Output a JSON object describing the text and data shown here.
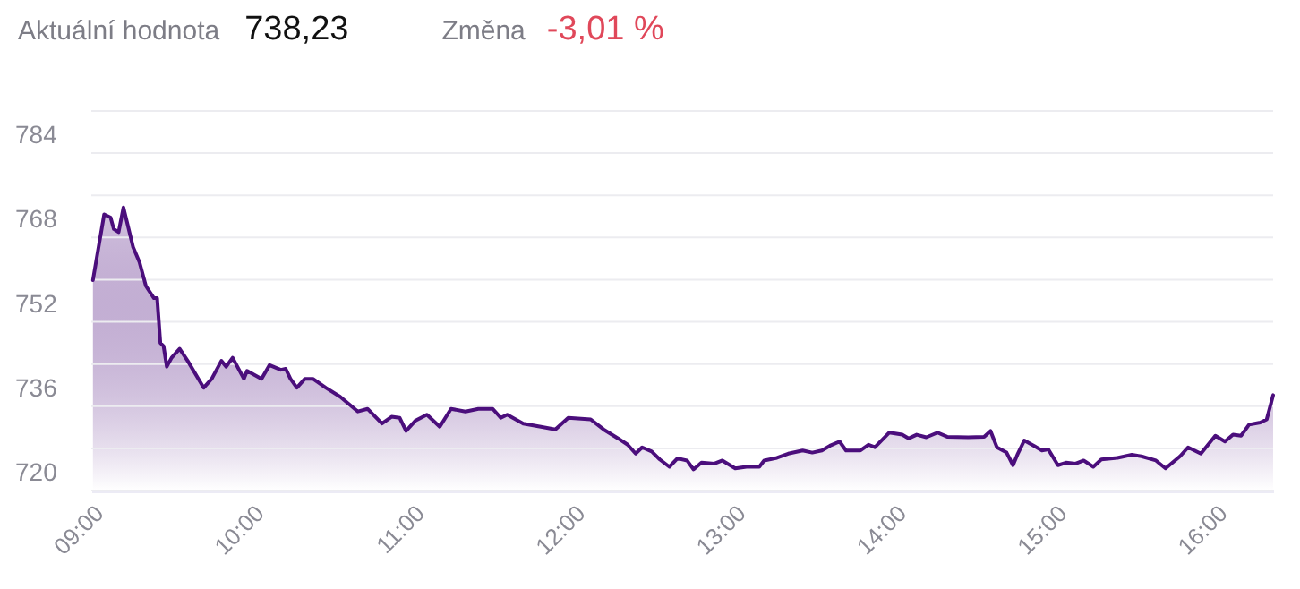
{
  "chart_data": {
    "type": "area",
    "annotations": [
      "Aktuální hodnota",
      "738,23",
      "Změna",
      "-3,01 %"
    ],
    "x": [
      9.01,
      9.08,
      9.12,
      9.14,
      9.17,
      9.2,
      9.26,
      9.3,
      9.34,
      9.39,
      9.41,
      9.43,
      9.45,
      9.47,
      9.5,
      9.55,
      9.6,
      9.7,
      9.75,
      9.81,
      9.84,
      9.88,
      9.95,
      9.97,
      10.06,
      10.11,
      10.18,
      10.21,
      10.24,
      10.28,
      10.33,
      10.38,
      10.46,
      10.55,
      10.66,
      10.72,
      10.81,
      10.87,
      10.92,
      10.96,
      11.02,
      11.09,
      11.17,
      11.24,
      11.33,
      11.41,
      11.5,
      11.55,
      11.59,
      11.69,
      11.8,
      11.89,
      11.97,
      12.11,
      12.19,
      12.28,
      12.34,
      12.39,
      12.43,
      12.49,
      12.54,
      12.6,
      12.65,
      12.71,
      12.75,
      12.8,
      12.88,
      12.93,
      13.01,
      13.08,
      13.16,
      13.19,
      13.27,
      13.34,
      13.43,
      13.49,
      13.55,
      13.6,
      13.66,
      13.7,
      13.79,
      13.84,
      13.88,
      13.97,
      14.05,
      14.09,
      14.14,
      14.2,
      14.27,
      14.33,
      14.46,
      14.56,
      14.6,
      14.64,
      14.7,
      14.74,
      14.77,
      14.81,
      14.87,
      14.92,
      14.96,
      15.02,
      15.07,
      15.13,
      15.18,
      15.24,
      15.29,
      15.39,
      15.48,
      15.54,
      15.63,
      15.69,
      15.78,
      15.83,
      15.91,
      16.0,
      16.06,
      16.11,
      16.16,
      16.21,
      16.28,
      16.32,
      16.36
    ],
    "series": [
      {
        "color": "#4b0e7c",
        "values": [
          759.9,
          772.4,
          771.8,
          769.6,
          769.0,
          773.7,
          766.2,
          763.3,
          758.8,
          756.5,
          756.5,
          748.0,
          747.4,
          743.5,
          745.2,
          746.9,
          744.6,
          739.5,
          741.2,
          744.6,
          743.5,
          745.2,
          741.2,
          742.7,
          741.2,
          743.8,
          742.9,
          743.1,
          741.2,
          739.5,
          741.2,
          741.2,
          739.5,
          737.8,
          735.0,
          735.5,
          732.7,
          734.0,
          733.8,
          731.3,
          733.3,
          734.4,
          732.1,
          735.5,
          735.0,
          735.5,
          735.5,
          733.8,
          734.4,
          732.7,
          732.1,
          731.6,
          733.8,
          733.5,
          731.6,
          729.9,
          728.7,
          727.0,
          728.2,
          727.4,
          725.9,
          724.5,
          726.1,
          725.7,
          724.0,
          725.3,
          725.1,
          725.7,
          724.2,
          724.5,
          724.5,
          725.7,
          726.2,
          727.0,
          727.6,
          727.2,
          727.6,
          728.5,
          729.3,
          727.6,
          727.6,
          728.7,
          728.2,
          731.0,
          730.6,
          729.9,
          730.6,
          730.1,
          731.0,
          730.2,
          730.1,
          730.2,
          731.3,
          728.2,
          727.2,
          724.8,
          727.0,
          729.5,
          728.5,
          727.6,
          727.8,
          724.8,
          725.3,
          725.1,
          725.7,
          724.5,
          725.9,
          726.2,
          726.8,
          726.5,
          725.7,
          724.2,
          726.5,
          728.2,
          727.0,
          730.4,
          729.3,
          730.6,
          730.4,
          732.5,
          732.9,
          733.5,
          738.1
        ]
      }
    ],
    "xlim": [
      9,
      16.36
    ],
    "xticks": [
      {
        "value": 9,
        "label": "09:00"
      },
      {
        "value": 10,
        "label": "10:00"
      },
      {
        "value": 11,
        "label": "11:00"
      },
      {
        "value": 12,
        "label": "12:00"
      },
      {
        "value": 13,
        "label": "13:00"
      },
      {
        "value": 14,
        "label": "14:00"
      },
      {
        "value": 15,
        "label": "15:00"
      },
      {
        "value": 16,
        "label": "16:00"
      }
    ],
    "ylim": [
      720,
      792
    ],
    "yticks": [
      720,
      {
        "value": 728,
        "label": null
      },
      736,
      {
        "value": 744,
        "label": null
      },
      752,
      {
        "value": 760,
        "label": null
      },
      768,
      {
        "value": 776,
        "label": null
      },
      784,
      {
        "value": 792,
        "label": null
      }
    ],
    "grid": "y"
  }
}
